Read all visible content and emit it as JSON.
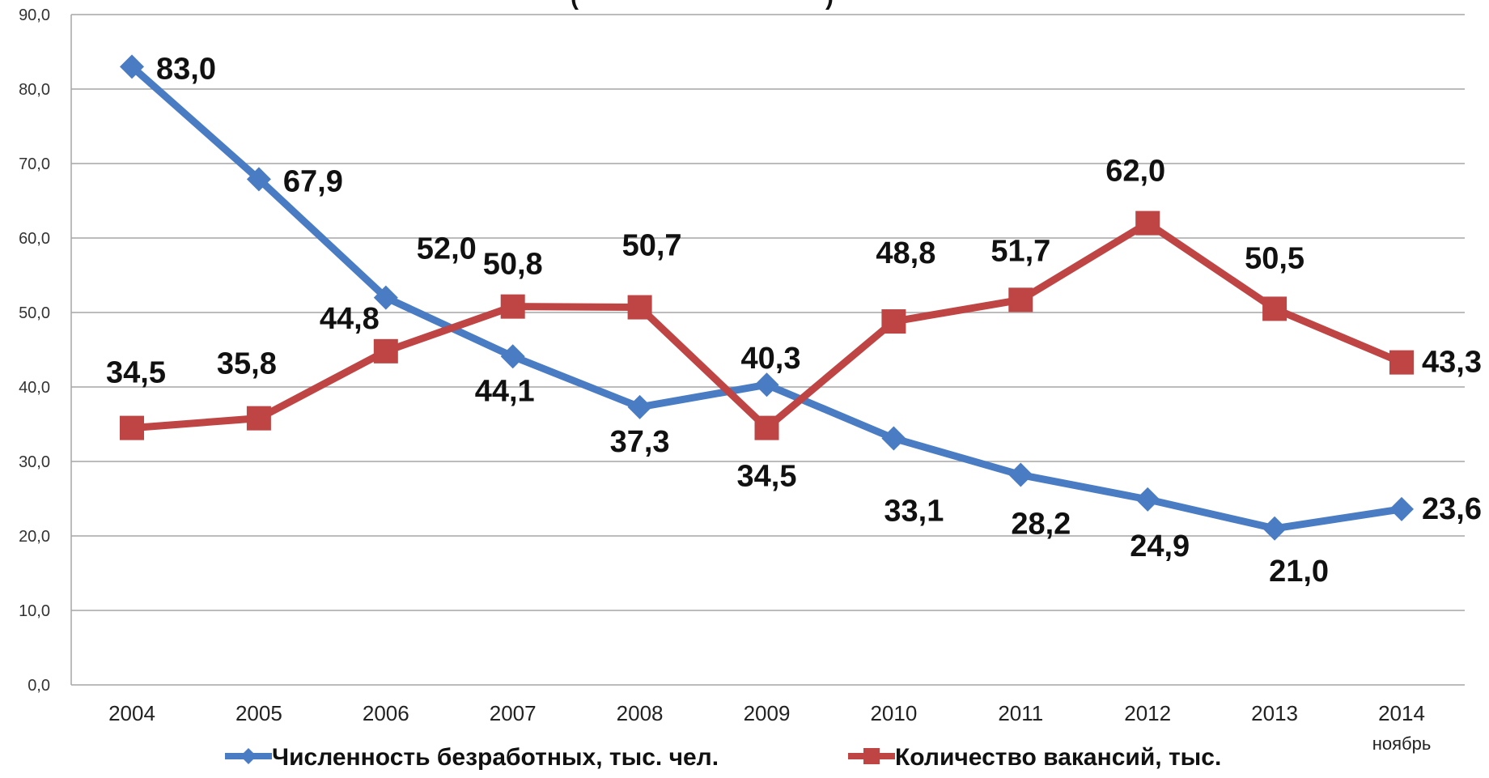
{
  "chart_data": {
    "type": "line",
    "title_fragment": "(",
    "title_fragment_end": ")",
    "categories": [
      "2004",
      "2005",
      "2006",
      "2007",
      "2008",
      "2009",
      "2010",
      "2011",
      "2012",
      "2013",
      "2014"
    ],
    "category_sublabels": [
      "",
      "",
      "",
      "",
      "",
      "",
      "",
      "",
      "",
      "",
      "ноябрь"
    ],
    "ylim": [
      0,
      90
    ],
    "yticks": [
      "0,0",
      "10,0",
      "20,0",
      "30,0",
      "40,0",
      "50,0",
      "60,0",
      "70,0",
      "80,0",
      "90,0"
    ],
    "grid": true,
    "legend_position": "bottom",
    "series": [
      {
        "name": "Численность безработных, тыс. чел.",
        "color": "#4a7cc4",
        "marker": "diamond",
        "values": [
          83.0,
          67.9,
          52.0,
          44.1,
          37.3,
          40.3,
          33.1,
          28.2,
          24.9,
          21.0,
          23.6
        ],
        "labels": [
          "83,0",
          "67,9",
          "52,0",
          "44,1",
          "37,3",
          "40,3",
          "33,1",
          "28,2",
          "24,9",
          "21,0",
          "23,6"
        ]
      },
      {
        "name": "Количество вакансий, тыс.",
        "color": "#bf4444",
        "marker": "square",
        "values": [
          34.5,
          35.8,
          44.8,
          50.8,
          50.7,
          34.5,
          48.8,
          51.7,
          62.0,
          50.5,
          43.3
        ],
        "labels": [
          "34,5",
          "35,8",
          "44,8",
          "50,8",
          "50,7",
          "34,5",
          "48,8",
          "51,7",
          "62,0",
          "50,5",
          "43,3"
        ]
      }
    ]
  }
}
